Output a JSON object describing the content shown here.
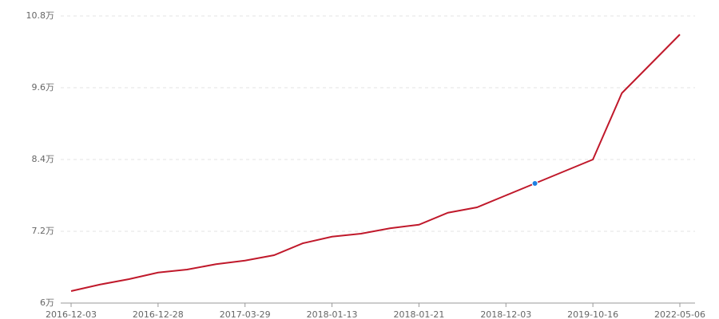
{
  "chart_data": {
    "type": "line",
    "categories": [
      "2016-12-03",
      null,
      null,
      "2016-12-28",
      null,
      null,
      "2017-03-29",
      null,
      null,
      "2018-01-13",
      null,
      null,
      "2018-01-21",
      null,
      null,
      "2018-12-03",
      null,
      null,
      "2019-10-16",
      null,
      null,
      "2022-05-06"
    ],
    "values": [
      6.2,
      6.31,
      6.4,
      6.51,
      6.56,
      6.65,
      6.71,
      6.8,
      7.0,
      7.11,
      7.16,
      7.25,
      7.31,
      7.51,
      7.6,
      7.8,
      8.0,
      8.2,
      8.4,
      9.51,
      10.0,
      10.49
    ],
    "color": "#c0192b",
    "highlight_color": "#1f7fe0",
    "highlight": 16,
    "ylim": [
      6,
      10.8
    ],
    "yticks": [
      {
        "value": 6,
        "label": "6万"
      },
      {
        "value": 7.2,
        "label": "7.2万"
      },
      {
        "value": 8.4,
        "label": "8.4万"
      },
      {
        "value": 9.6,
        "label": "9.6万"
      },
      {
        "value": 10.8,
        "label": "10.8万"
      }
    ],
    "grid": true
  }
}
